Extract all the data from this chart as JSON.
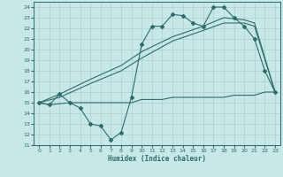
{
  "xlabel": "Humidex (Indice chaleur)",
  "xlim": [
    -0.5,
    23.5
  ],
  "ylim": [
    11,
    24.5
  ],
  "yticks": [
    11,
    12,
    13,
    14,
    15,
    16,
    17,
    18,
    19,
    20,
    21,
    22,
    23,
    24
  ],
  "xticks": [
    0,
    1,
    2,
    3,
    4,
    5,
    6,
    7,
    8,
    9,
    10,
    11,
    12,
    13,
    14,
    15,
    16,
    17,
    18,
    19,
    20,
    21,
    22,
    23
  ],
  "bg_color": "#c8e8e8",
  "line_color": "#2e6b6b",
  "grid_color": "#a8d0d0",
  "line1_x": [
    0,
    1,
    2,
    3,
    4,
    5,
    6,
    7,
    8,
    9,
    10,
    11,
    12,
    13,
    14,
    15,
    16,
    17,
    18,
    19,
    20,
    21,
    22,
    23
  ],
  "line1_y": [
    15.0,
    14.8,
    15.8,
    15.0,
    14.5,
    13.0,
    12.8,
    11.5,
    12.2,
    15.5,
    20.5,
    22.2,
    22.2,
    23.3,
    23.2,
    22.5,
    22.2,
    24.0,
    24.0,
    23.0,
    22.2,
    21.0,
    18.0,
    16.0
  ],
  "line2_x": [
    0,
    2,
    5,
    8,
    10,
    13,
    16,
    18,
    20,
    21,
    23
  ],
  "line2_y": [
    15.0,
    15.5,
    16.8,
    18.0,
    19.2,
    20.8,
    21.8,
    22.5,
    22.5,
    22.2,
    16.0
  ],
  "line3_x": [
    0,
    2,
    5,
    8,
    10,
    13,
    16,
    18,
    20,
    21,
    23
  ],
  "line3_y": [
    15.0,
    15.8,
    17.2,
    18.5,
    19.8,
    21.2,
    22.2,
    23.0,
    22.8,
    22.5,
    16.0
  ],
  "hline_x": [
    0,
    1,
    3,
    7,
    9,
    10,
    11,
    12,
    13,
    14,
    15,
    16,
    17,
    18,
    19,
    20,
    21,
    22,
    23
  ],
  "hline_y": [
    15.0,
    14.8,
    15.0,
    15.0,
    15.0,
    15.3,
    15.3,
    15.3,
    15.5,
    15.5,
    15.5,
    15.5,
    15.5,
    15.5,
    15.7,
    15.7,
    15.7,
    16.0,
    16.0
  ]
}
